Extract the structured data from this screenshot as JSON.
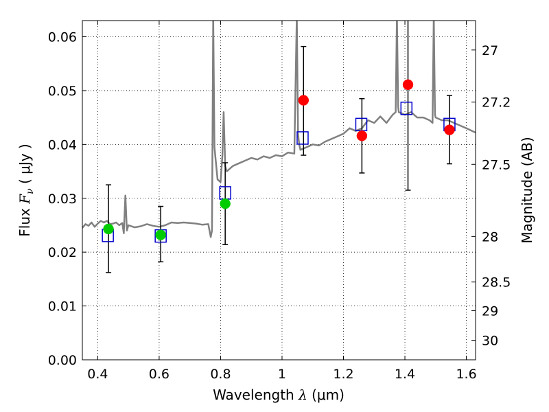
{
  "chart_data": {
    "type": "scatter",
    "xlabel": "Wavelength  λ (μm)",
    "ylabel": "Flux  F_ν  ( μJy )",
    "ylabel_parts": {
      "prefix": "Flux  ",
      "symbol": "F",
      "subscript": "ν",
      "suffix": "  ( μJy )"
    },
    "xlabel_parts": {
      "prefix": "Wavelength  ",
      "symbol": "λ",
      "suffix": " (μm)"
    },
    "ylabel_right": "Magnitude (AB)",
    "xlim": [
      0.35,
      1.63
    ],
    "ylim": [
      0.0,
      0.063
    ],
    "grid": true,
    "x_ticks": [
      0.4,
      0.6,
      0.8,
      1.0,
      1.2,
      1.4,
      1.6
    ],
    "x_tick_labels": [
      "0.4",
      "0.6",
      "0.8",
      "1",
      "1.2",
      "1.4",
      "1.6"
    ],
    "y_ticks": [
      0.0,
      0.01,
      0.02,
      0.03,
      0.04,
      0.05,
      0.06
    ],
    "y_tick_labels": [
      "0.00",
      "0.01",
      "0.02",
      "0.03",
      "0.04",
      "0.05",
      "0.06"
    ],
    "right_ticks": [
      {
        "label": "27",
        "flux": 0.05754
      },
      {
        "label": "27.2",
        "flux": 0.04786
      },
      {
        "label": "27.5",
        "flux": 0.03631
      },
      {
        "label": "28",
        "flux": 0.02291
      },
      {
        "label": "28.5",
        "flux": 0.01445
      },
      {
        "label": "29",
        "flux": 0.00912
      },
      {
        "label": "30",
        "flux": 0.00363
      }
    ],
    "series": [
      {
        "kind": "line",
        "color": "#808080",
        "x": [
          0.35,
          0.36,
          0.37,
          0.38,
          0.39,
          0.4,
          0.41,
          0.42,
          0.43,
          0.44,
          0.45,
          0.46,
          0.47,
          0.48,
          0.485,
          0.49,
          0.495,
          0.5,
          0.52,
          0.54,
          0.56,
          0.58,
          0.6,
          0.62,
          0.64,
          0.66,
          0.68,
          0.7,
          0.72,
          0.74,
          0.76,
          0.768,
          0.772,
          0.776,
          0.78,
          0.79,
          0.8,
          0.806,
          0.81,
          0.815,
          0.82,
          0.84,
          0.86,
          0.88,
          0.9,
          0.92,
          0.94,
          0.96,
          0.98,
          1.0,
          1.02,
          1.04,
          1.048,
          1.052,
          1.056,
          1.06,
          1.08,
          1.1,
          1.12,
          1.14,
          1.16,
          1.18,
          1.2,
          1.22,
          1.24,
          1.26,
          1.28,
          1.3,
          1.32,
          1.34,
          1.36,
          1.37,
          1.374,
          1.378,
          1.38,
          1.4,
          1.42,
          1.44,
          1.46,
          1.48,
          1.49,
          1.494,
          1.498,
          1.5,
          1.52,
          1.54,
          1.56,
          1.58,
          1.6,
          1.63
        ],
        "y": [
          0.0245,
          0.0252,
          0.0249,
          0.0255,
          0.0247,
          0.0253,
          0.0258,
          0.0255,
          0.0258,
          0.0252,
          0.0253,
          0.0255,
          0.025,
          0.0254,
          0.0235,
          0.0305,
          0.024,
          0.025,
          0.0246,
          0.0248,
          0.0252,
          0.0249,
          0.0247,
          0.025,
          0.0255,
          0.0254,
          0.0255,
          0.0254,
          0.0253,
          0.0251,
          0.0252,
          0.0228,
          0.024,
          0.064,
          0.0395,
          0.0335,
          0.033,
          0.038,
          0.046,
          0.036,
          0.035,
          0.036,
          0.0365,
          0.037,
          0.0375,
          0.0372,
          0.0378,
          0.0375,
          0.038,
          0.0378,
          0.0385,
          0.0383,
          0.064,
          0.042,
          0.04,
          0.039,
          0.0395,
          0.04,
          0.0398,
          0.0405,
          0.041,
          0.0415,
          0.042,
          0.043,
          0.0425,
          0.043,
          0.0445,
          0.044,
          0.0452,
          0.044,
          0.0455,
          0.046,
          0.064,
          0.047,
          0.046,
          0.0455,
          0.046,
          0.045,
          0.045,
          0.0445,
          0.044,
          0.064,
          0.0455,
          0.045,
          0.0445,
          0.0445,
          0.044,
          0.0435,
          0.043,
          0.0422
        ]
      },
      {
        "kind": "markers",
        "marker": "square",
        "color": "#0000cc",
        "x": [
          0.433,
          0.605,
          0.815,
          1.067,
          1.258,
          1.405,
          1.545
        ],
        "y": [
          0.0231,
          0.023,
          0.031,
          0.0412,
          0.0437,
          0.0467,
          0.0437
        ]
      },
      {
        "kind": "markers",
        "marker": "circle",
        "color": "#00cc00",
        "x": [
          0.435,
          0.605,
          0.815
        ],
        "y": [
          0.0243,
          0.0232,
          0.029
        ]
      },
      {
        "kind": "markers",
        "marker": "circle",
        "color": "#ff0000",
        "x": [
          1.07,
          1.26,
          1.41,
          1.545
        ],
        "y": [
          0.0482,
          0.0416,
          0.0511,
          0.0427
        ]
      },
      {
        "kind": "errorbars",
        "color": "#000000",
        "x": [
          0.435,
          0.605,
          0.815,
          1.07,
          1.26,
          1.41,
          1.545
        ],
        "y": [
          0.0243,
          0.0232,
          0.029,
          0.0482,
          0.0416,
          0.0511,
          0.0427
        ],
        "ylow": [
          0.0162,
          0.0182,
          0.0214,
          0.038,
          0.0347,
          0.0315,
          0.0364
        ],
        "yhigh": [
          0.0325,
          0.0285,
          0.0366,
          0.0582,
          0.0485,
          0.064,
          0.0491
        ]
      }
    ]
  }
}
